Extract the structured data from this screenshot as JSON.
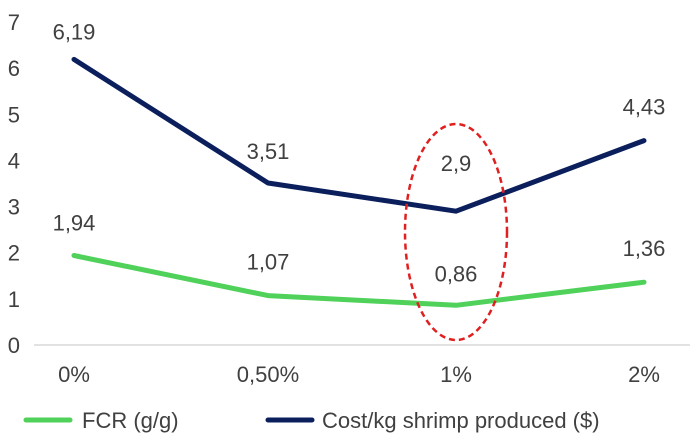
{
  "chart_data": {
    "type": "line",
    "categories": [
      "0%",
      "0,50%",
      "1%",
      "2%"
    ],
    "ylim": [
      0,
      7
    ],
    "yticks": [
      "0",
      "1",
      "2",
      "3",
      "4",
      "5",
      "6",
      "7"
    ],
    "series": [
      {
        "name": "FCR (g/g)",
        "color": "#4fd15a",
        "values": [
          1.94,
          1.07,
          0.86,
          1.36
        ],
        "labels": [
          "1,94",
          "1,07",
          "0,86",
          "1,36"
        ]
      },
      {
        "name": "Cost/kg shrimp produced ($)",
        "color": "#0b1f5c",
        "values": [
          6.19,
          3.51,
          2.9,
          4.43
        ],
        "labels": [
          "6,19",
          "3,51",
          "2,9",
          "4,43"
        ]
      }
    ],
    "legend_position": "bottom",
    "highlight": {
      "category": "1%",
      "color": "#e02020",
      "style": "dashed-ellipse"
    },
    "axis_color": "#d9d9d9",
    "text_color": "#404040"
  }
}
